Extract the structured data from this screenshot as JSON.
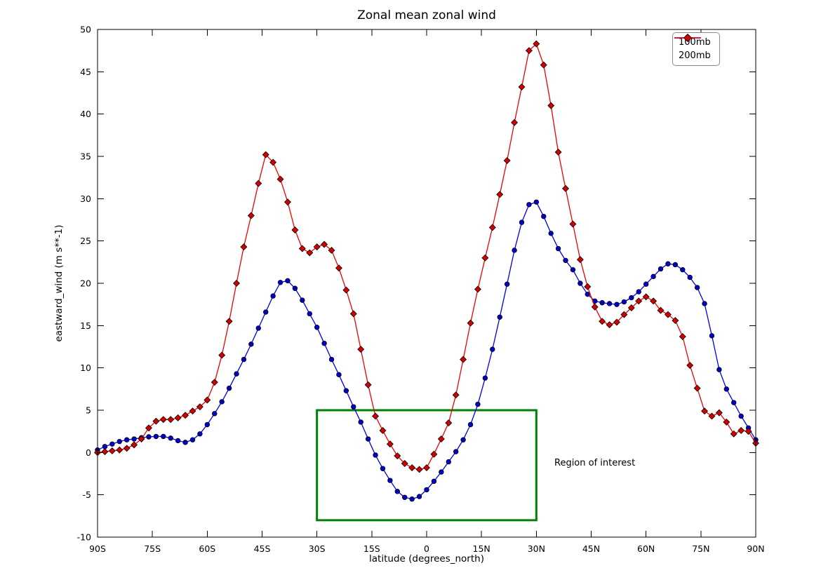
{
  "chart_data": {
    "type": "line",
    "title": "Zonal mean zonal wind",
    "xlabel": "latitude (degrees_north)",
    "ylabel": "eastward_wind (m s**-1)",
    "xlim": [
      -90,
      90
    ],
    "ylim": [
      -10,
      50
    ],
    "grid": false,
    "legend_position": "upper right",
    "xticks": {
      "values": [
        -90,
        -75,
        -60,
        -45,
        -30,
        -15,
        0,
        15,
        30,
        45,
        60,
        75,
        90
      ],
      "labels": [
        "90S",
        "75S",
        "60S",
        "45S",
        "30S",
        "15S",
        "0",
        "15N",
        "30N",
        "45N",
        "60N",
        "75N",
        "90N"
      ]
    },
    "yticks": {
      "values": [
        -10,
        -5,
        0,
        5,
        10,
        15,
        20,
        25,
        30,
        35,
        40,
        45,
        50
      ],
      "labels": [
        "-10",
        "-5",
        "0",
        "5",
        "10",
        "15",
        "20",
        "25",
        "30",
        "35",
        "40",
        "45",
        "50"
      ]
    },
    "x": [
      -90,
      -88,
      -86,
      -84,
      -82,
      -80,
      -78,
      -76,
      -74,
      -72,
      -70,
      -68,
      -66,
      -64,
      -62,
      -60,
      -58,
      -56,
      -54,
      -52,
      -50,
      -48,
      -46,
      -44,
      -42,
      -40,
      -38,
      -36,
      -34,
      -32,
      -30,
      -28,
      -26,
      -24,
      -22,
      -20,
      -18,
      -16,
      -14,
      -12,
      -10,
      -8,
      -6,
      -4,
      -2,
      0,
      2,
      4,
      6,
      8,
      10,
      12,
      14,
      16,
      18,
      20,
      22,
      24,
      26,
      28,
      30,
      32,
      34,
      36,
      38,
      40,
      42,
      44,
      46,
      48,
      50,
      52,
      54,
      56,
      58,
      60,
      62,
      64,
      66,
      68,
      70,
      72,
      74,
      76,
      78,
      80,
      82,
      84,
      86,
      88,
      90
    ],
    "series": [
      {
        "name": "100mb",
        "marker": "circle",
        "line_color": "#0000ee",
        "marker_color": "#0000cc",
        "values": [
          0.3,
          0.7,
          1.0,
          1.3,
          1.5,
          1.6,
          1.75,
          1.85,
          1.9,
          1.9,
          1.7,
          1.4,
          1.2,
          1.5,
          2.2,
          3.3,
          4.6,
          6.0,
          7.6,
          9.3,
          11.0,
          12.8,
          14.7,
          16.6,
          18.5,
          20.1,
          20.3,
          19.4,
          18.0,
          16.4,
          14.8,
          12.9,
          11.0,
          9.2,
          7.3,
          5.4,
          3.6,
          1.6,
          -0.3,
          -1.9,
          -3.3,
          -4.6,
          -5.3,
          -5.5,
          -5.2,
          -4.4,
          -3.4,
          -2.3,
          -1.1,
          0.1,
          1.5,
          3.3,
          5.7,
          8.8,
          12.2,
          16.0,
          19.9,
          23.9,
          27.2,
          29.3,
          29.6,
          27.9,
          25.9,
          24.1,
          22.7,
          21.6,
          20.0,
          18.7,
          17.9,
          17.7,
          17.6,
          17.5,
          17.8,
          18.3,
          19.0,
          19.9,
          20.8,
          21.7,
          22.3,
          22.2,
          21.6,
          20.7,
          19.5,
          17.6,
          13.8,
          9.8,
          7.5,
          5.9,
          4.3,
          2.9,
          1.5
        ]
      },
      {
        "name": "200mb",
        "marker": "diamond",
        "line_color": "#ee0000",
        "marker_color": "#d40000",
        "values": [
          0.0,
          0.1,
          0.2,
          0.3,
          0.5,
          0.9,
          1.6,
          2.9,
          3.7,
          3.9,
          3.9,
          4.1,
          4.4,
          4.9,
          5.4,
          6.2,
          8.3,
          11.5,
          15.5,
          20.0,
          24.3,
          28.0,
          31.8,
          35.2,
          34.3,
          32.3,
          29.6,
          26.3,
          24.1,
          23.6,
          24.3,
          24.6,
          23.9,
          21.8,
          19.2,
          16.4,
          12.2,
          8.0,
          4.3,
          2.6,
          1.0,
          -0.4,
          -1.3,
          -1.8,
          -2.0,
          -1.8,
          -0.2,
          1.6,
          3.5,
          6.8,
          11.0,
          15.3,
          19.3,
          23.0,
          26.6,
          30.5,
          34.5,
          39.0,
          43.2,
          47.5,
          48.3,
          45.8,
          41.0,
          35.5,
          31.2,
          27.0,
          22.8,
          19.6,
          17.2,
          15.5,
          15.1,
          15.4,
          16.3,
          17.1,
          17.9,
          18.4,
          17.9,
          16.8,
          16.3,
          15.6,
          13.7,
          10.3,
          7.6,
          4.9,
          4.3,
          4.7,
          3.6,
          2.2,
          2.6,
          2.5,
          1.1
        ]
      }
    ],
    "annotation": {
      "label": "Region of interest",
      "rect": {
        "x0": -30,
        "x1": 30,
        "y0": -8,
        "y1": 5
      },
      "color": "#008000"
    },
    "marker_edge_color": "#000000",
    "axis_color": "#000000"
  }
}
